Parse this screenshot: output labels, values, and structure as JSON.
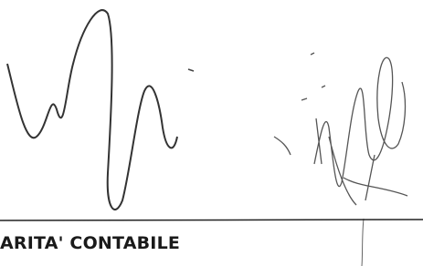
{
  "footer": {
    "label": "ARITA' CONTABILE"
  }
}
